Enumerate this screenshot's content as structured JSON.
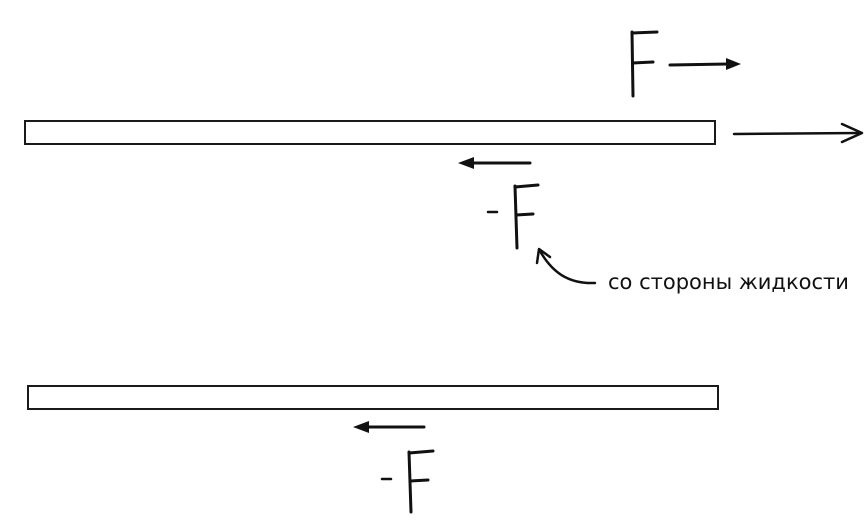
{
  "diagram": {
    "top_plate": {
      "force_label": "F",
      "reaction_label": "F",
      "reaction_sign": "-",
      "annotation": "со стороны жидкости"
    },
    "bottom_plate": {
      "reaction_label": "F",
      "reaction_sign": "-"
    },
    "colors": {
      "ink": "#111111",
      "plate_fill": "#ffffff",
      "background": "#ffffff"
    },
    "icons": [
      "arrow-right-icon",
      "arrow-left-icon",
      "curved-pointer-arrow-icon"
    ]
  }
}
